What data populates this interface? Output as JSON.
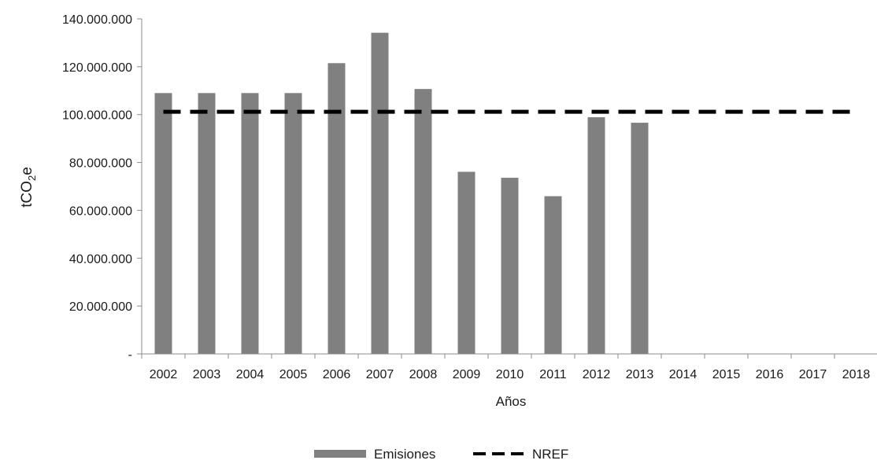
{
  "chart_data": {
    "type": "bar",
    "categories": [
      "2002",
      "2003",
      "2004",
      "2005",
      "2006",
      "2007",
      "2008",
      "2009",
      "2010",
      "2011",
      "2012",
      "2013",
      "2014",
      "2015",
      "2016",
      "2017",
      "2018"
    ],
    "series": [
      {
        "name": "Emisiones",
        "type": "bar",
        "color": "#808080",
        "values": [
          109000000,
          109000000,
          109000000,
          109000000,
          121500000,
          134200000,
          110700000,
          76100000,
          73600000,
          65900000,
          98900000,
          96600000,
          null,
          null,
          null,
          null,
          null
        ]
      },
      {
        "name": "NREF",
        "type": "line",
        "style": "dashed",
        "color": "#000000",
        "values": [
          101200000,
          101200000,
          101200000,
          101200000,
          101200000,
          101200000,
          101200000,
          101200000,
          101200000,
          101200000,
          101200000,
          101200000,
          101200000,
          101200000,
          101200000,
          101200000,
          101200000
        ]
      }
    ],
    "xlabel": "Años",
    "ylabel": {
      "main": "tCO",
      "sub": "2",
      "suffix": "e"
    },
    "ylim": [
      0,
      140000000
    ],
    "yticks": [
      {
        "value": 0,
        "label": "-"
      },
      {
        "value": 20000000,
        "label": "20.000.000"
      },
      {
        "value": 40000000,
        "label": "40.000.000"
      },
      {
        "value": 60000000,
        "label": "60.000.000"
      },
      {
        "value": 80000000,
        "label": "80.000.000"
      },
      {
        "value": 100000000,
        "label": "100.000.000"
      },
      {
        "value": 120000000,
        "label": "120.000.000"
      },
      {
        "value": 140000000,
        "label": "140.000.000"
      }
    ],
    "grid": false,
    "legend": {
      "position": "bottom",
      "entries": [
        "Emisiones",
        "NREF"
      ]
    }
  }
}
